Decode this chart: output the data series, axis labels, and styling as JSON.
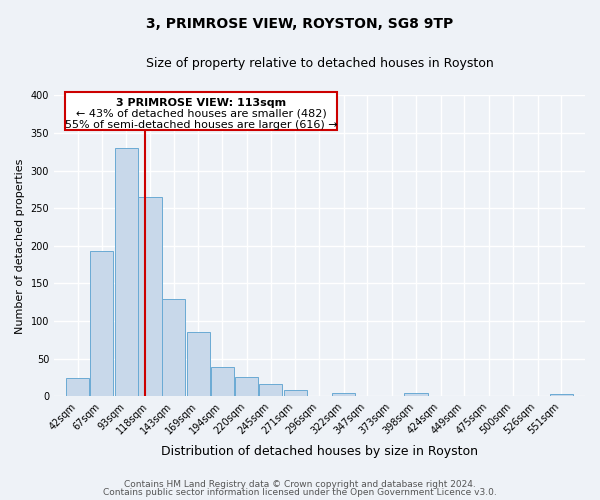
{
  "title": "3, PRIMROSE VIEW, ROYSTON, SG8 9TP",
  "subtitle": "Size of property relative to detached houses in Royston",
  "xlabel": "Distribution of detached houses by size in Royston",
  "ylabel": "Number of detached properties",
  "bar_labels": [
    "42sqm",
    "67sqm",
    "93sqm",
    "118sqm",
    "143sqm",
    "169sqm",
    "194sqm",
    "220sqm",
    "245sqm",
    "271sqm",
    "296sqm",
    "322sqm",
    "347sqm",
    "373sqm",
    "398sqm",
    "424sqm",
    "449sqm",
    "475sqm",
    "500sqm",
    "526sqm",
    "551sqm"
  ],
  "bar_values": [
    25,
    193,
    330,
    265,
    130,
    86,
    39,
    26,
    17,
    8,
    0,
    5,
    0,
    0,
    4,
    0,
    0,
    0,
    0,
    0,
    3
  ],
  "bar_color": "#c8d8ea",
  "bar_edge_color": "#6aaad4",
  "property_line_x": 113,
  "property_line_label": "3 PRIMROSE VIEW: 113sqm",
  "annotation_line1": "← 43% of detached houses are smaller (482)",
  "annotation_line2": "55% of semi-detached houses are larger (616) →",
  "vline_color": "#cc0000",
  "annotation_box_edge": "#cc0000",
  "annotation_bg": "#ffffff",
  "ylim": [
    0,
    400
  ],
  "yticks": [
    0,
    50,
    100,
    150,
    200,
    250,
    300,
    350,
    400
  ],
  "footer1": "Contains HM Land Registry data © Crown copyright and database right 2024.",
  "footer2": "Contains public sector information licensed under the Open Government Licence v3.0.",
  "bg_color": "#eef2f7",
  "grid_color": "#ffffff",
  "bin_width": 25
}
